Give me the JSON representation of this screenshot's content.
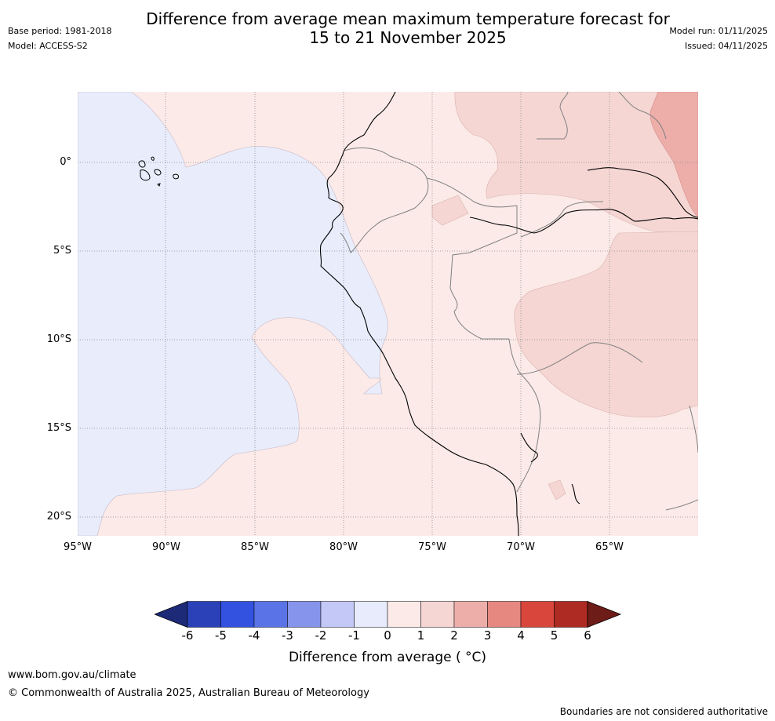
{
  "title_line1": "Difference from average mean maximum temperature forecast for",
  "title_line2": "15 to 21 November 2025",
  "base_period": "Base period: 1981-2018",
  "model": "Model: ACCESS-S2",
  "model_run": "Model run: 01/11/2025",
  "issued": "Issued: 04/11/2025",
  "map": {
    "lat_labels": [
      "0°",
      "5°S",
      "10°S",
      "15°S",
      "20°S"
    ],
    "lon_labels": [
      "95°W",
      "90°W",
      "85°W",
      "80°W",
      "75°W",
      "70°W",
      "65°W"
    ],
    "region": "Western South America / Eastern Pacific",
    "fill_colors": {
      "ocean_cool": "#e8ecfb",
      "warm_0_1": "#fbeae8",
      "warm_1_2": "#f5d6d3",
      "warm_2_3": "#edaeaa"
    }
  },
  "colorbar": {
    "ticks": [
      "-6",
      "-5",
      "-4",
      "-3",
      "-2",
      "-1",
      "0",
      "1",
      "2",
      "3",
      "4",
      "5",
      "6"
    ],
    "colors": [
      "#1c2a78",
      "#2a41b8",
      "#3352e0",
      "#5a73e6",
      "#8694ec",
      "#c3c8f6",
      "#e8ebfb",
      "#fbeae8",
      "#f5d6d3",
      "#edaeaa",
      "#e68780",
      "#d9473c",
      "#ad2b22",
      "#6e1c17"
    ],
    "label": "Difference from average ( °C)"
  },
  "footer": {
    "url": "www.bom.gov.au/climate",
    "copyright": "© Commonwealth of Australia 2025, Australian Bureau of Meteorology",
    "note": "Boundaries are not considered authoritative"
  }
}
